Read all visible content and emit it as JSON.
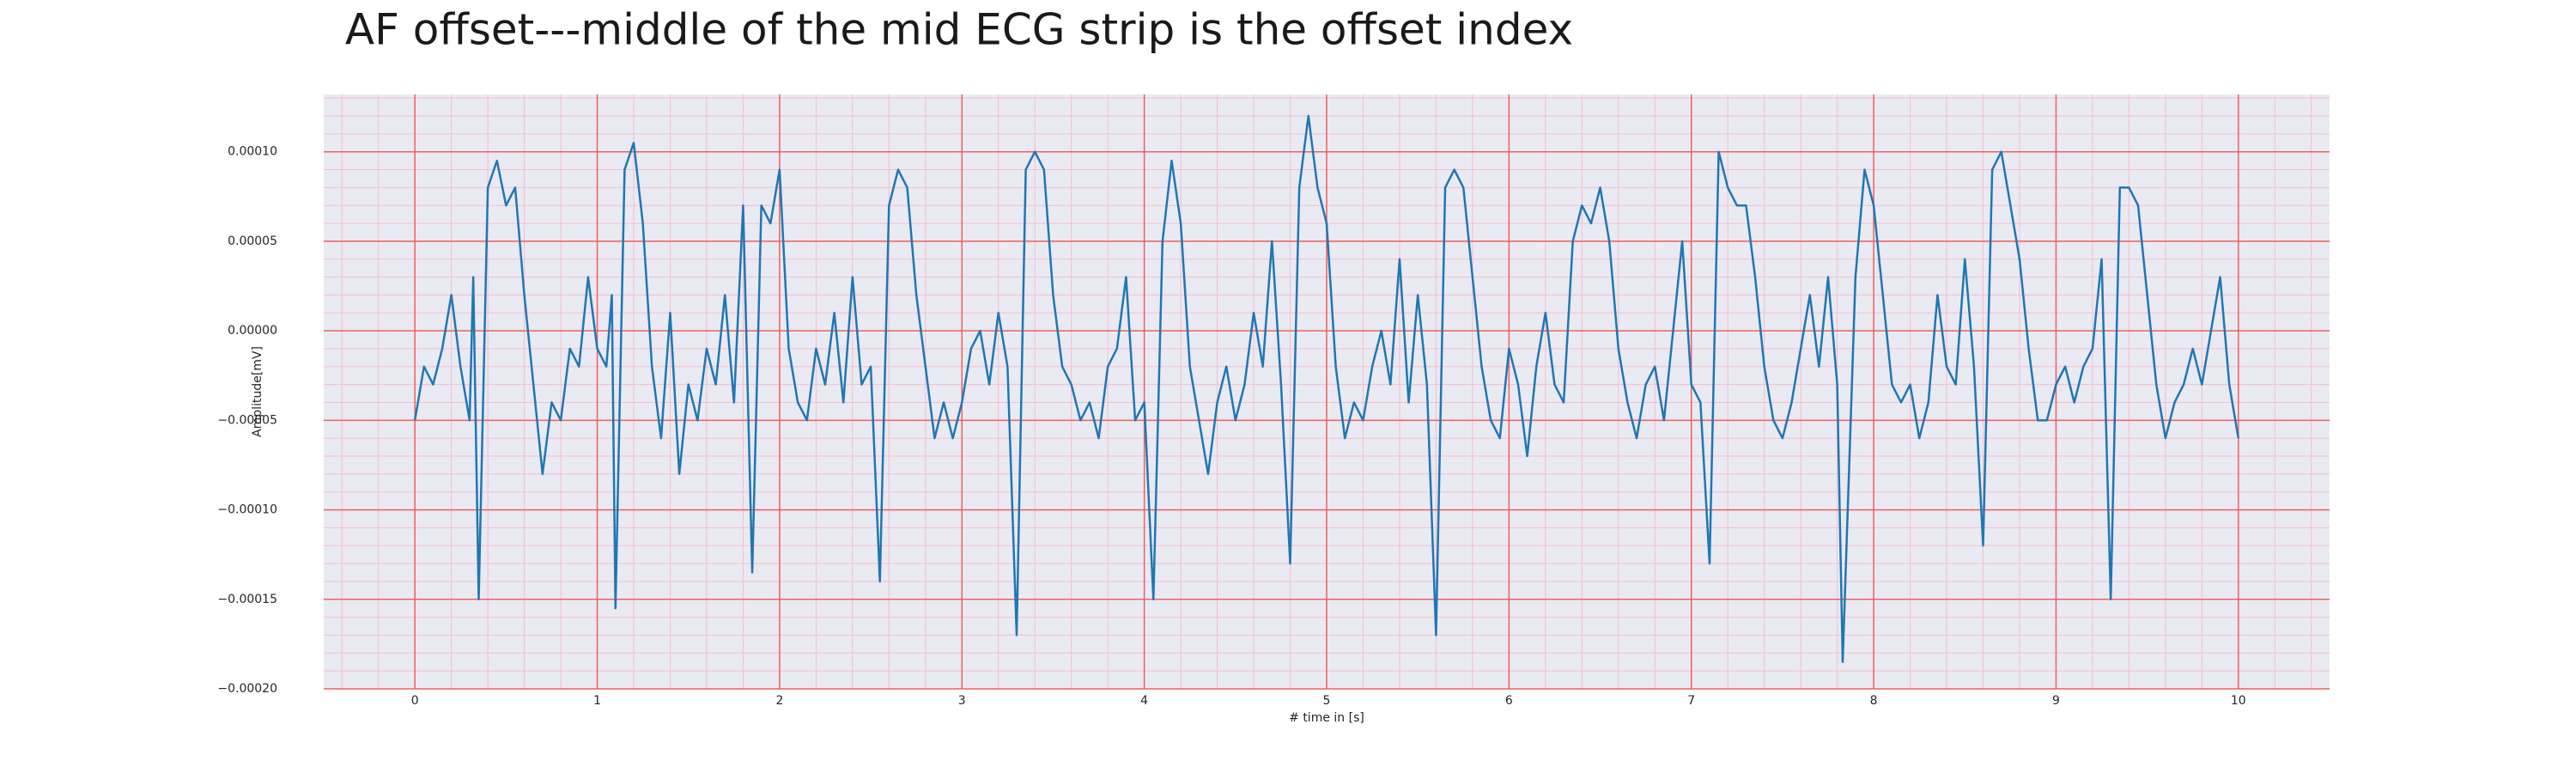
{
  "chart_data": {
    "type": "line",
    "title": "AF offset---middle of the mid ECG strip is the offset index",
    "xlabel": "# time in [s]",
    "ylabel": "Amplitude[mV]",
    "color": "#1f77b4",
    "background": "#eaeaf2",
    "grid": true,
    "grid_color": "#f06060",
    "minor_grid": true,
    "minor_grid_color": "#f2bfcc",
    "xlim": [
      -0.5,
      10.5
    ],
    "ylim": [
      -0.0002,
      0.000132
    ],
    "xticks": [
      0,
      1,
      2,
      3,
      4,
      5,
      6,
      7,
      8,
      9,
      10
    ],
    "yticks": [
      {
        "value": -0.0002,
        "label": "−0.00020"
      },
      {
        "value": -0.00015,
        "label": "−0.00015"
      },
      {
        "value": -0.0001,
        "label": "−0.00010"
      },
      {
        "value": -5e-05,
        "label": "−0.00005"
      },
      {
        "value": 0,
        "label": "0.00000"
      },
      {
        "value": 5e-05,
        "label": "0.00005"
      },
      {
        "value": 0.0001,
        "label": "0.00010"
      }
    ],
    "x": [
      0,
      0.05,
      0.1,
      0.15,
      0.2,
      0.25,
      0.3,
      0.32,
      0.35,
      0.4,
      0.45,
      0.5,
      0.55,
      0.6,
      0.65,
      0.7,
      0.75,
      0.8,
      0.85,
      0.9,
      0.95,
      1.0,
      1.05,
      1.08,
      1.1,
      1.15,
      1.2,
      1.25,
      1.3,
      1.35,
      1.4,
      1.45,
      1.5,
      1.55,
      1.6,
      1.65,
      1.7,
      1.75,
      1.8,
      1.85,
      1.9,
      1.95,
      2.0,
      2.05,
      2.1,
      2.15,
      2.2,
      2.25,
      2.3,
      2.35,
      2.4,
      2.45,
      2.5,
      2.55,
      2.6,
      2.65,
      2.7,
      2.75,
      2.8,
      2.85,
      2.9,
      2.95,
      3.0,
      3.05,
      3.1,
      3.15,
      3.2,
      3.25,
      3.3,
      3.35,
      3.4,
      3.45,
      3.5,
      3.55,
      3.6,
      3.65,
      3.7,
      3.75,
      3.8,
      3.85,
      3.9,
      3.95,
      4.0,
      4.05,
      4.1,
      4.15,
      4.2,
      4.25,
      4.3,
      4.35,
      4.4,
      4.45,
      4.5,
      4.55,
      4.6,
      4.65,
      4.7,
      4.75,
      4.8,
      4.85,
      4.9,
      4.95,
      5.0,
      5.05,
      5.1,
      5.15,
      5.2,
      5.25,
      5.3,
      5.35,
      5.4,
      5.45,
      5.5,
      5.55,
      5.6,
      5.65,
      5.7,
      5.75,
      5.8,
      5.85,
      5.9,
      5.95,
      6.0,
      6.05,
      6.1,
      6.15,
      6.2,
      6.25,
      6.3,
      6.35,
      6.4,
      6.45,
      6.5,
      6.55,
      6.6,
      6.65,
      6.7,
      6.75,
      6.8,
      6.85,
      6.9,
      6.95,
      7.0,
      7.05,
      7.1,
      7.15,
      7.2,
      7.25,
      7.3,
      7.35,
      7.4,
      7.45,
      7.5,
      7.55,
      7.6,
      7.65,
      7.7,
      7.75,
      7.8,
      7.83,
      7.9,
      7.95,
      8.0,
      8.05,
      8.1,
      8.15,
      8.2,
      8.25,
      8.3,
      8.35,
      8.4,
      8.45,
      8.5,
      8.55,
      8.6,
      8.65,
      8.7,
      8.75,
      8.8,
      8.85,
      8.9,
      8.95,
      9.0,
      9.05,
      9.1,
      9.15,
      9.2,
      9.25,
      9.3,
      9.35,
      9.4,
      9.45,
      9.5,
      9.55,
      9.6,
      9.65,
      9.7,
      9.75,
      9.8,
      9.85,
      9.9,
      9.95,
      10.0
    ],
    "values": [
      -5e-05,
      -2e-05,
      -3e-05,
      -1e-05,
      2e-05,
      -2e-05,
      -5e-05,
      3e-05,
      -0.00015,
      8e-05,
      9.5e-05,
      7e-05,
      8e-05,
      2e-05,
      -3e-05,
      -8e-05,
      -4e-05,
      -5e-05,
      -1e-05,
      -2e-05,
      3e-05,
      -1e-05,
      -2e-05,
      2e-05,
      -0.000155,
      9e-05,
      0.000105,
      6e-05,
      -2e-05,
      -6e-05,
      1e-05,
      -8e-05,
      -3e-05,
      -5e-05,
      -1e-05,
      -3e-05,
      2e-05,
      -4e-05,
      7e-05,
      -0.000135,
      7e-05,
      6e-05,
      9e-05,
      -1e-05,
      -4e-05,
      -5e-05,
      -1e-05,
      -3e-05,
      1e-05,
      -4e-05,
      3e-05,
      -3e-05,
      -2e-05,
      -0.00014,
      7e-05,
      9e-05,
      8e-05,
      2e-05,
      -2e-05,
      -6e-05,
      -4e-05,
      -6e-05,
      -4e-05,
      -1e-05,
      0,
      -3e-05,
      1e-05,
      -2e-05,
      -0.00017,
      9e-05,
      0.0001,
      9e-05,
      2e-05,
      -2e-05,
      -3e-05,
      -5e-05,
      -4e-05,
      -6e-05,
      -2e-05,
      -1e-05,
      3e-05,
      -5e-05,
      -4e-05,
      -0.00015,
      5e-05,
      9.5e-05,
      6e-05,
      -2e-05,
      -5e-05,
      -8e-05,
      -4e-05,
      -2e-05,
      -5e-05,
      -3e-05,
      1e-05,
      -2e-05,
      5e-05,
      -3e-05,
      -0.00013,
      8e-05,
      0.00012,
      8e-05,
      6e-05,
      -2e-05,
      -6e-05,
      -4e-05,
      -5e-05,
      -2e-05,
      0,
      -3e-05,
      4e-05,
      -4e-05,
      2e-05,
      -3e-05,
      -0.00017,
      8e-05,
      9e-05,
      8e-05,
      3e-05,
      -2e-05,
      -5e-05,
      -6e-05,
      -1e-05,
      -3e-05,
      -7e-05,
      -2e-05,
      1e-05,
      -3e-05,
      -4e-05,
      5e-05,
      7e-05,
      6e-05,
      8e-05,
      5e-05,
      -1e-05,
      -4e-05,
      -6e-05,
      -3e-05,
      -2e-05,
      -5e-05,
      0,
      5e-05,
      -3e-05,
      -4e-05,
      -0.00013,
      0.0001,
      8e-05,
      7e-05,
      7e-05,
      3e-05,
      -2e-05,
      -5e-05,
      -6e-05,
      -4e-05,
      -1e-05,
      2e-05,
      -2e-05,
      3e-05,
      -3e-05,
      -0.000185,
      3e-05,
      9e-05,
      7e-05,
      2e-05,
      -3e-05,
      -4e-05,
      -3e-05,
      -6e-05,
      -4e-05,
      2e-05,
      -2e-05,
      -3e-05,
      4e-05,
      -2e-05,
      -0.00012,
      9e-05,
      0.0001,
      7e-05,
      4e-05,
      -1e-05,
      -5e-05,
      -5e-05,
      -3e-05,
      -2e-05,
      -4e-05,
      -2e-05,
      -1e-05,
      4e-05,
      -0.00015,
      8e-05,
      8e-05,
      7e-05,
      2e-05,
      -3e-05,
      -6e-05,
      -4e-05,
      -3e-05,
      -1e-05,
      -3e-05,
      0,
      3e-05,
      -3e-05,
      -6e-05
    ]
  }
}
